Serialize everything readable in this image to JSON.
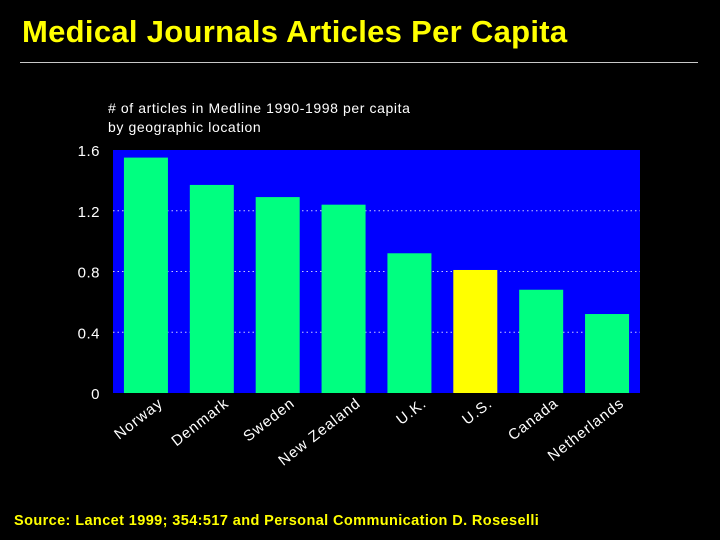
{
  "slide": {
    "title": "Medical Journals Articles Per Capita",
    "source": "Source: Lancet 1999; 354:517 and Personal Communication D. Roseselli"
  },
  "colors": {
    "background": "#000000",
    "title": "#ffff00",
    "plot_background": "#0000ff",
    "bar": "#00ff80",
    "highlight_bar": "#ffff00",
    "text": "#ffffff"
  },
  "chart_data": {
    "type": "bar",
    "subtitle": "# of articles in Medline 1990-1998 per capita\nby geographic location",
    "title": "",
    "xlabel": "",
    "ylabel": "",
    "categories": [
      "Norway",
      "Denmark",
      "Sweden",
      "New Zealand",
      "U.K.",
      "U.S.",
      "Canada",
      "Netherlands"
    ],
    "values": [
      1.55,
      1.37,
      1.29,
      1.24,
      0.92,
      0.81,
      0.68,
      0.52
    ],
    "highlight": "U.S.",
    "ylim": [
      0,
      1.6
    ],
    "yticks": [
      "0",
      "0.4",
      "0.8",
      "1.2",
      "1.6"
    ],
    "grid": "horizontal dotted",
    "legend": "none"
  }
}
